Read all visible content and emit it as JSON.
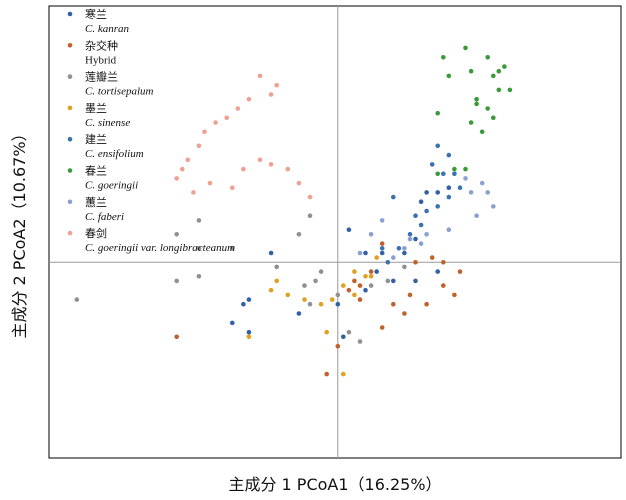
{
  "chart_data": {
    "type": "scatter",
    "xlabel": "主成分 1 PCoA1（16.25%）",
    "ylabel": "主成分 2 PCoA2（10.67%）",
    "xlim": [
      -0.52,
      0.51
    ],
    "ylim": [
      -0.42,
      0.55
    ],
    "origin_lines": true,
    "grid": false,
    "legend_position": "top-left",
    "series": [
      {
        "name": "寒兰",
        "sci_name": "C. kanran",
        "sci_italic": true,
        "color": "#3060a8",
        "points": [
          [
            -0.17,
            -0.09
          ],
          [
            -0.16,
            -0.15
          ],
          [
            -0.12,
            0.02
          ],
          [
            -0.19,
            -0.13
          ],
          [
            0.01,
            -0.16
          ],
          [
            0.02,
            0.07
          ],
          [
            0.05,
            0.02
          ],
          [
            0.08,
            0.02
          ],
          [
            0.15,
            0.13
          ],
          [
            0.18,
            0.15
          ],
          [
            0.2,
            0.16
          ],
          [
            0.16,
            0.15
          ],
          [
            0.14,
            0.05
          ],
          [
            0.12,
            0.02
          ],
          [
            0.07,
            -0.02
          ],
          [
            0.05,
            -0.06
          ],
          [
            0.1,
            -0.04
          ],
          [
            0.14,
            -0.04
          ],
          [
            0.18,
            -0.02
          ],
          [
            -0.07,
            -0.11
          ],
          [
            0.0,
            -0.09
          ],
          [
            -0.16,
            -0.08
          ]
        ]
      },
      {
        "name": "杂交种",
        "sci_name": "Hybrid",
        "sci_italic": false,
        "color": "#c0602a",
        "points": [
          [
            -0.29,
            -0.16
          ],
          [
            0.03,
            -0.04
          ],
          [
            0.04,
            -0.08
          ],
          [
            0.12,
            -0.11
          ],
          [
            0.13,
            -0.07
          ],
          [
            0.1,
            -0.09
          ],
          [
            0.08,
            -0.14
          ],
          [
            0.16,
            -0.09
          ],
          [
            0.19,
            -0.05
          ],
          [
            0.21,
            -0.07
          ],
          [
            0.22,
            -0.02
          ],
          [
            0.19,
            0.0
          ],
          [
            0.17,
            0.01
          ],
          [
            0.14,
            0.0
          ],
          [
            0.08,
            0.04
          ],
          [
            0.06,
            -0.02
          ],
          [
            0.04,
            -0.05
          ],
          [
            0.02,
            -0.06
          ],
          [
            0.0,
            -0.18
          ],
          [
            -0.02,
            -0.24
          ]
        ]
      },
      {
        "name": "莲瓣兰",
        "sci_name": "C. tortisepalum",
        "sci_italic": true,
        "color": "#909090",
        "points": [
          [
            -0.47,
            -0.08
          ],
          [
            -0.29,
            0.06
          ],
          [
            -0.29,
            -0.04
          ],
          [
            -0.25,
            0.03
          ],
          [
            -0.25,
            -0.03
          ],
          [
            -0.19,
            0.03
          ],
          [
            -0.11,
            -0.01
          ],
          [
            -0.06,
            -0.05
          ],
          [
            -0.05,
            -0.09
          ],
          [
            -0.04,
            -0.04
          ],
          [
            -0.03,
            -0.02
          ],
          [
            0.0,
            -0.07
          ],
          [
            0.02,
            -0.15
          ],
          [
            0.04,
            -0.17
          ],
          [
            0.06,
            -0.05
          ],
          [
            0.09,
            -0.04
          ],
          [
            0.12,
            -0.01
          ],
          [
            -0.07,
            0.06
          ],
          [
            -0.25,
            0.09
          ],
          [
            -0.05,
            0.1
          ]
        ]
      },
      {
        "name": "墨兰",
        "sci_name": "C. sinense",
        "sci_italic": true,
        "color": "#e0a020",
        "points": [
          [
            -0.16,
            -0.16
          ],
          [
            -0.12,
            -0.06
          ],
          [
            -0.11,
            -0.04
          ],
          [
            -0.09,
            -0.07
          ],
          [
            -0.06,
            -0.08
          ],
          [
            -0.03,
            -0.09
          ],
          [
            -0.02,
            -0.15
          ],
          [
            -0.01,
            -0.08
          ],
          [
            0.01,
            -0.05
          ],
          [
            0.03,
            -0.07
          ],
          [
            0.05,
            -0.03
          ],
          [
            0.07,
            0.01
          ],
          [
            0.06,
            -0.03
          ],
          [
            0.03,
            -0.02
          ],
          [
            0.01,
            -0.24
          ]
        ]
      },
      {
        "name": "建兰",
        "sci_name": "C. ensifolium",
        "sci_italic": true,
        "color": "#3a72b0",
        "points": [
          [
            0.18,
            0.25
          ],
          [
            0.2,
            0.23
          ],
          [
            0.17,
            0.21
          ],
          [
            0.19,
            0.19
          ],
          [
            0.22,
            0.16
          ],
          [
            0.2,
            0.14
          ],
          [
            0.18,
            0.12
          ],
          [
            0.16,
            0.11
          ],
          [
            0.15,
            0.08
          ],
          [
            0.13,
            0.06
          ],
          [
            0.11,
            0.03
          ],
          [
            0.09,
            0.0
          ],
          [
            0.08,
            0.03
          ],
          [
            0.1,
            0.14
          ],
          [
            0.14,
            0.1
          ],
          [
            0.21,
            0.19
          ]
        ]
      },
      {
        "name": "春兰",
        "sci_name": "C. goeringii",
        "sci_italic": true,
        "color": "#3a9a3a",
        "points": [
          [
            0.18,
            0.32
          ],
          [
            0.24,
            0.3
          ],
          [
            0.26,
            0.28
          ],
          [
            0.27,
            0.33
          ],
          [
            0.25,
            0.34
          ],
          [
            0.29,
            0.37
          ],
          [
            0.28,
            0.31
          ],
          [
            0.28,
            0.4
          ],
          [
            0.29,
            0.41
          ],
          [
            0.24,
            0.41
          ],
          [
            0.19,
            0.44
          ],
          [
            0.2,
            0.4
          ],
          [
            0.27,
            0.44
          ],
          [
            0.23,
            0.46
          ],
          [
            0.25,
            0.35
          ],
          [
            0.3,
            0.42
          ],
          [
            0.31,
            0.37
          ],
          [
            0.18,
            0.19
          ],
          [
            0.21,
            0.2
          ],
          [
            0.23,
            0.2
          ]
        ]
      },
      {
        "name": "蕙兰",
        "sci_name": "C. faberi",
        "sci_italic": true,
        "color": "#8aa0d0",
        "points": [
          [
            0.27,
            0.15
          ],
          [
            0.28,
            0.12
          ],
          [
            0.25,
            0.1
          ],
          [
            0.24,
            0.15
          ],
          [
            0.23,
            0.18
          ],
          [
            0.26,
            0.17
          ],
          [
            0.2,
            0.07
          ],
          [
            0.16,
            0.06
          ],
          [
            0.15,
            0.04
          ],
          [
            0.13,
            0.05
          ],
          [
            0.12,
            0.03
          ],
          [
            0.1,
            0.01
          ],
          [
            0.08,
            0.09
          ],
          [
            0.06,
            0.06
          ],
          [
            0.04,
            0.02
          ]
        ]
      },
      {
        "name": "春剑",
        "sci_name": "C. goeringii var. longibracteanum",
        "sci_italic": true,
        "color": "#f0a090",
        "points": [
          [
            -0.11,
            0.38
          ],
          [
            -0.12,
            0.36
          ],
          [
            -0.14,
            0.4
          ],
          [
            -0.16,
            0.35
          ],
          [
            -0.18,
            0.33
          ],
          [
            -0.2,
            0.31
          ],
          [
            -0.22,
            0.3
          ],
          [
            -0.24,
            0.28
          ],
          [
            -0.25,
            0.25
          ],
          [
            -0.27,
            0.22
          ],
          [
            -0.28,
            0.2
          ],
          [
            -0.29,
            0.18
          ],
          [
            -0.26,
            0.15
          ],
          [
            -0.23,
            0.17
          ],
          [
            -0.19,
            0.16
          ],
          [
            -0.17,
            0.2
          ],
          [
            -0.14,
            0.22
          ],
          [
            -0.12,
            0.21
          ],
          [
            -0.09,
            0.2
          ],
          [
            -0.07,
            0.17
          ],
          [
            -0.05,
            0.14
          ]
        ]
      }
    ]
  }
}
